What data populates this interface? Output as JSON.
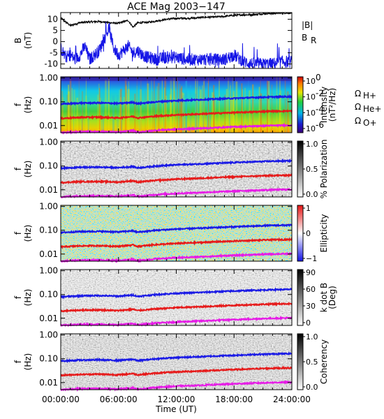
{
  "title": "ACE Mag 2003−147",
  "x_axis": {
    "label": "Time (UT)",
    "ticks": [
      "00:00:00",
      "06:00:00",
      "12:00:00",
      "18:00:00",
      "24:00:00"
    ],
    "range_hours": [
      0,
      24
    ]
  },
  "legend": {
    "b_total": "|B|",
    "b_r": "B",
    "b_r_sub": "R",
    "h_plus": "Ω",
    "h_plus_sub": "H+",
    "he_plus": "Ω",
    "he_plus_sub": "He+",
    "o_plus": "Ω",
    "o_plus_sub": "O+"
  },
  "panels": [
    {
      "id": "field",
      "ylabel_line1": "B",
      "ylabel_line2": "(nT)",
      "yticks": [
        "10",
        "5",
        "0",
        "-5",
        "-10"
      ]
    },
    {
      "id": "intensity",
      "ylabel_line1": "f",
      "ylabel_line2": "(Hz)",
      "yticks": [
        "1.00",
        "0.10",
        "0.01"
      ],
      "cbar_label": "Intensity",
      "cbar_label2": "(nT²/Hz)",
      "cbar_ticks": [
        "10",
        "10",
        "10",
        "10"
      ],
      "cbar_exps": [
        "0",
        "-2",
        "-4",
        "-6"
      ]
    },
    {
      "id": "polarization",
      "ylabel_line1": "f",
      "ylabel_line2": "(Hz)",
      "yticks": [
        "1.00",
        "0.10",
        "0.01"
      ],
      "cbar_label": "% Polarization",
      "cbar_ticks": [
        "1.0",
        "0.5",
        "0.0"
      ]
    },
    {
      "id": "ellipticity",
      "ylabel_line1": "f",
      "ylabel_line2": "(Hz)",
      "yticks": [
        "1.00",
        "0.10",
        "0.01"
      ],
      "cbar_label": "Ellipticity",
      "cbar_ticks": [
        "1",
        "0",
        "−1"
      ]
    },
    {
      "id": "kdotb",
      "ylabel_line1": "f",
      "ylabel_line2": "(Hz)",
      "yticks": [
        "1.00",
        "0.10",
        "0.01"
      ],
      "cbar_label": "k dot B",
      "cbar_label2": "(Deg)",
      "cbar_ticks": [
        "90",
        "60",
        "30",
        "0"
      ]
    },
    {
      "id": "coherency",
      "ylabel_line1": "f",
      "ylabel_line2": "(Hz)",
      "yticks": [
        "1.00",
        "0.10",
        "0.01"
      ],
      "cbar_label": "Coherency",
      "cbar_ticks": [
        "1.0",
        "0.5",
        "0.0"
      ]
    }
  ],
  "colors": {
    "b_total": "#000000",
    "b_r": "#1515e6",
    "h_plus": "#1a1ae6",
    "he_plus": "#e61a1a",
    "o_plus": "#e61ae6"
  },
  "chart_data": [
    {
      "type": "line",
      "ylim": [
        -12,
        13
      ],
      "series": [
        {
          "name": "|B|",
          "x": [
            0,
            1,
            2,
            3,
            4,
            5,
            6,
            7,
            7.5,
            8,
            9,
            10,
            11,
            12,
            13,
            14,
            15,
            16,
            17,
            18,
            19,
            20,
            21,
            22,
            23,
            24
          ],
          "values": [
            10.5,
            7.2,
            8.5,
            8.8,
            9.0,
            8.5,
            8.2,
            9.5,
            6.5,
            8.4,
            8.6,
            9.3,
            10.0,
            10.4,
            10.4,
            10.6,
            10.9,
            11.0,
            11.3,
            11.8,
            12.0,
            12.0,
            12.5,
            12.7,
            12.8,
            12.9
          ]
        },
        {
          "name": "BR",
          "x": [
            0,
            0.5,
            1,
            1.5,
            2,
            2.5,
            3,
            3.5,
            4,
            4.5,
            5,
            5.5,
            6,
            6.5,
            7,
            7.5,
            8,
            8.5,
            9,
            10,
            11,
            12,
            13,
            14,
            15,
            16,
            17,
            18,
            19,
            20,
            21,
            22,
            23,
            24
          ],
          "values": [
            -3,
            -7,
            -6,
            -8,
            -6,
            -2,
            -8,
            -6,
            -4,
            1,
            6,
            -3,
            -6,
            -4,
            -2,
            -5,
            -4,
            -6,
            -7,
            -8,
            -7,
            -7,
            -8,
            -8,
            -8,
            -8,
            -8,
            -6,
            -9,
            -10,
            -10,
            -10,
            -9,
            -9
          ]
        }
      ]
    },
    {
      "type": "line",
      "ylim_log10": [
        -2.3,
        0.05
      ],
      "series": [
        {
          "name": "ΩH+",
          "x": [
            0,
            2,
            4,
            6,
            7.5,
            8,
            10,
            12,
            14,
            16,
            18,
            20,
            22,
            24
          ],
          "values": [
            0.08,
            0.088,
            0.09,
            0.085,
            0.095,
            0.083,
            0.1,
            0.112,
            0.12,
            0.13,
            0.14,
            0.15,
            0.16,
            0.165
          ]
        },
        {
          "name": "ΩHe+",
          "x": [
            0,
            2,
            4,
            6,
            7.5,
            8,
            10,
            12,
            14,
            16,
            18,
            20,
            22,
            24
          ],
          "values": [
            0.02,
            0.022,
            0.0225,
            0.021,
            0.024,
            0.021,
            0.025,
            0.028,
            0.03,
            0.0325,
            0.035,
            0.0375,
            0.04,
            0.041
          ]
        },
        {
          "name": "ΩO+",
          "x": [
            0,
            2,
            4,
            6,
            7.5,
            8,
            10,
            12,
            14,
            16,
            18,
            20,
            22,
            24
          ],
          "values": [
            0.005,
            0.0055,
            0.0056,
            0.0053,
            0.006,
            0.0052,
            0.0063,
            0.007,
            0.0075,
            0.0081,
            0.0088,
            0.0094,
            0.01,
            0.0103
          ]
        }
      ]
    }
  ]
}
